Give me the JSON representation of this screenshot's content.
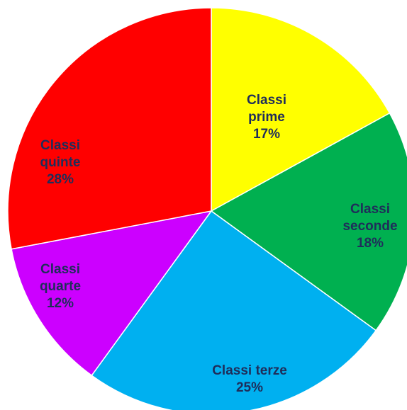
{
  "chart_data": {
    "type": "pie",
    "categories": [
      "Classi prime",
      "Classi seconde",
      "Classi terze",
      "Classi quarte",
      "Classi quinte"
    ],
    "values": [
      17,
      18,
      25,
      12,
      28
    ],
    "value_labels": [
      "17%",
      "18%",
      "25%",
      "12%",
      "28%"
    ],
    "colors": [
      "#ffff00",
      "#00b050",
      "#00b0f0",
      "#cc00ff",
      "#ff0000"
    ]
  }
}
